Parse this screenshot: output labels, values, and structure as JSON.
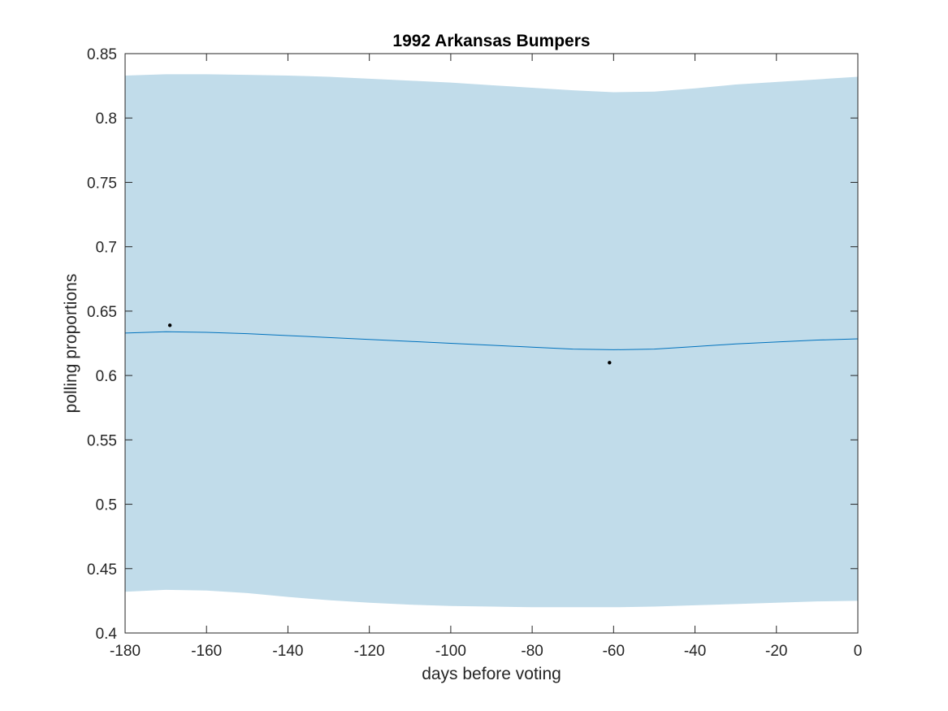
{
  "chart_data": {
    "type": "line",
    "title": "1992 Arkansas Bumpers",
    "xlabel": "days before voting",
    "ylabel": "polling proportions",
    "xlim": [
      -180,
      0
    ],
    "ylim": [
      0.4,
      0.85
    ],
    "xticks": [
      -180,
      -160,
      -140,
      -120,
      -100,
      -80,
      -60,
      -40,
      -20,
      0
    ],
    "xtick_labels": [
      "-180",
      "-160",
      "-140",
      "-120",
      "-100",
      "-80",
      "-60",
      "-40",
      "-20",
      "0"
    ],
    "yticks": [
      0.4,
      0.45,
      0.5,
      0.55,
      0.6,
      0.65,
      0.7,
      0.75,
      0.8,
      0.85
    ],
    "ytick_labels": [
      "0.4",
      "0.45",
      "0.5",
      "0.55",
      "0.6",
      "0.65",
      "0.7",
      "0.75",
      "0.8",
      "0.85"
    ],
    "grid": false,
    "colors": {
      "band": "#c1dcea",
      "line": "#0072bd",
      "points": "#000000",
      "axis": "#262626"
    },
    "band": {
      "x": [
        -180,
        -170,
        -160,
        -150,
        -140,
        -130,
        -120,
        -110,
        -100,
        -90,
        -80,
        -70,
        -60,
        -50,
        -40,
        -30,
        -20,
        -10,
        0
      ],
      "upper": [
        0.833,
        0.834,
        0.834,
        0.8335,
        0.833,
        0.832,
        0.8305,
        0.829,
        0.8275,
        0.8255,
        0.8235,
        0.8215,
        0.82,
        0.8205,
        0.823,
        0.826,
        0.828,
        0.83,
        0.832
      ],
      "lower": [
        0.432,
        0.4335,
        0.433,
        0.431,
        0.428,
        0.4255,
        0.4235,
        0.422,
        0.421,
        0.4205,
        0.42,
        0.42,
        0.42,
        0.4205,
        0.4215,
        0.4225,
        0.4235,
        0.4245,
        0.425
      ]
    },
    "series": [
      {
        "x": [
          -180,
          -170,
          -160,
          -150,
          -140,
          -130,
          -120,
          -110,
          -100,
          -90,
          -80,
          -70,
          -60,
          -50,
          -40,
          -30,
          -20,
          -10,
          0
        ],
        "values": [
          0.633,
          0.634,
          0.6335,
          0.6325,
          0.631,
          0.6295,
          0.628,
          0.6265,
          0.625,
          0.6235,
          0.622,
          0.6205,
          0.62,
          0.6205,
          0.6225,
          0.6245,
          0.626,
          0.6275,
          0.6285
        ]
      }
    ],
    "points": [
      {
        "x": -169,
        "y": 0.639
      },
      {
        "x": -61,
        "y": 0.61
      }
    ]
  }
}
